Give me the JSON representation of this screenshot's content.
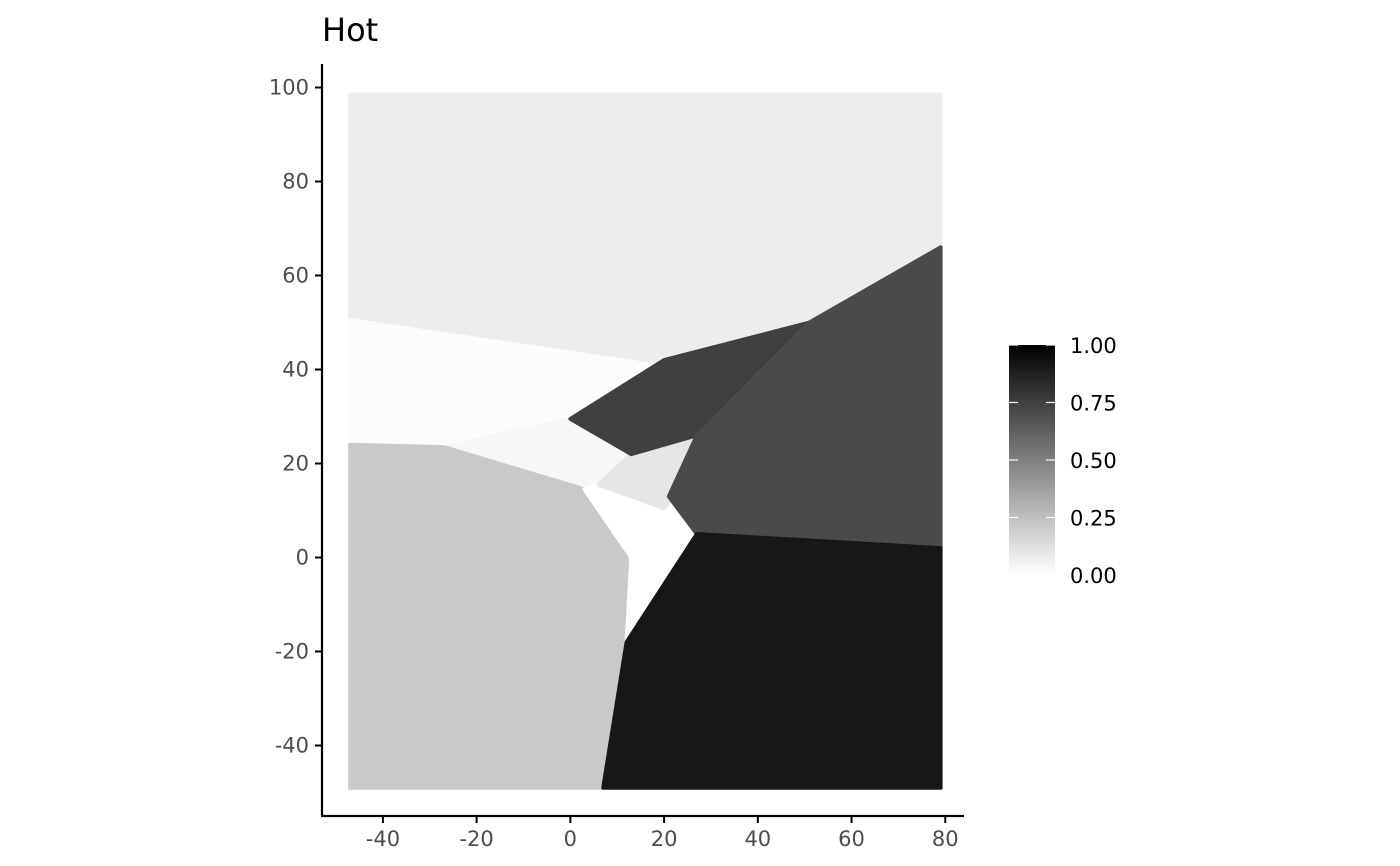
{
  "chart_data": {
    "type": "voronoi-tile",
    "title": "Hot",
    "xlabel": "",
    "ylabel": "",
    "xlim": [
      -53,
      84
    ],
    "ylim": [
      -55,
      105
    ],
    "x_ticks": [
      -40,
      -20,
      0,
      20,
      40,
      60,
      80
    ],
    "y_ticks": [
      -40,
      -20,
      0,
      20,
      40,
      60,
      80,
      100
    ],
    "x_tick_labels": [
      "-40",
      "-20",
      "0",
      "20",
      "40",
      "60",
      "80"
    ],
    "y_tick_labels": [
      "-40",
      "-20",
      "0",
      "20",
      "40",
      "60",
      "80",
      "100"
    ],
    "color_scale": {
      "low_color": "#ffffff",
      "high_color": "#000000",
      "limits": [
        0,
        1
      ],
      "breaks": [
        0,
        0.25,
        0.5,
        0.75,
        1
      ],
      "break_labels": [
        "0.00",
        "0.25",
        "0.50",
        "0.75",
        "1.00"
      ],
      "legend_position": "right"
    },
    "tiles": [
      {
        "value": 0.07,
        "polygon": [
          [
            -47,
            98.5
          ],
          [
            79,
            98.5
          ],
          [
            79,
            66
          ],
          [
            51,
            50
          ],
          [
            17.5,
            41
          ],
          [
            -47,
            50.5
          ]
        ]
      },
      {
        "value": 0.01,
        "polygon": [
          [
            -47,
            50.5
          ],
          [
            17.5,
            41
          ],
          [
            0,
            29.5
          ],
          [
            -27,
            23.5
          ],
          [
            -47,
            24
          ]
        ]
      },
      {
        "value": 0.03,
        "polygon": [
          [
            -27,
            23.5
          ],
          [
            0,
            29.5
          ],
          [
            13,
            22
          ],
          [
            6,
            15.5
          ],
          [
            3,
            14.5
          ]
        ]
      },
      {
        "value": 0.21,
        "polygon": [
          [
            -47,
            24
          ],
          [
            -27,
            23.5
          ],
          [
            3,
            14.5
          ],
          [
            13,
            0
          ],
          [
            12,
            -18
          ],
          [
            7,
            -49
          ],
          [
            -47,
            -49
          ]
        ]
      },
      {
        "value": 0.0,
        "polygon": [
          [
            3,
            14.5
          ],
          [
            6,
            15.5
          ],
          [
            20,
            10.5
          ],
          [
            27,
            5
          ],
          [
            12,
            -18
          ],
          [
            13,
            0
          ]
        ]
      },
      {
        "value": 0.1,
        "polygon": [
          [
            6,
            15.5
          ],
          [
            13,
            22
          ],
          [
            27,
            26
          ],
          [
            22,
            13
          ],
          [
            20,
            10.5
          ]
        ]
      },
      {
        "value": 0.75,
        "polygon": [
          [
            0,
            29.5
          ],
          [
            20,
            42
          ],
          [
            51,
            50
          ],
          [
            27,
            26
          ],
          [
            13,
            22
          ]
        ]
      },
      {
        "value": 0.71,
        "polygon": [
          [
            51,
            50
          ],
          [
            79,
            66
          ],
          [
            79,
            2
          ],
          [
            27,
            5
          ],
          [
            21,
            13
          ],
          [
            27,
            26
          ]
        ]
      },
      {
        "value": 0.91,
        "polygon": [
          [
            27,
            5
          ],
          [
            79,
            2
          ],
          [
            79,
            -49
          ],
          [
            7,
            -49
          ],
          [
            12,
            -18
          ]
        ]
      }
    ]
  }
}
